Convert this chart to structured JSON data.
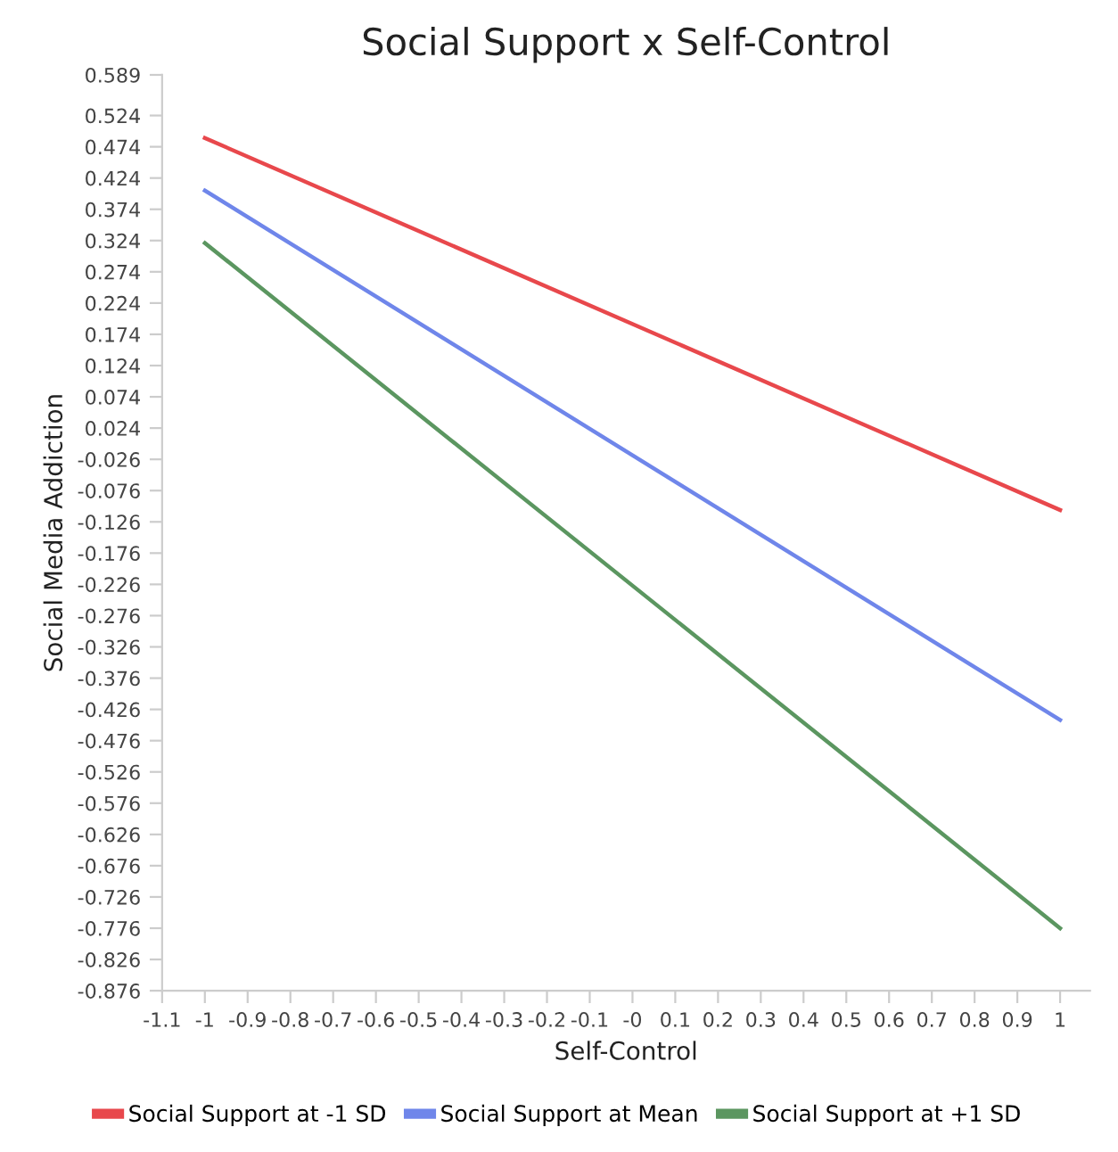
{
  "chart_data": {
    "type": "line",
    "title": "Social Support x Self-Control",
    "xlabel": "Self-Control",
    "ylabel": "Social Media Addiction",
    "x": [
      -1,
      1
    ],
    "series": [
      {
        "name": "Social Support at -1 SD",
        "color": "#e8484c",
        "values": [
          0.488,
          -0.107
        ]
      },
      {
        "name": "Social Support at Mean",
        "color": "#6f86ea",
        "values": [
          0.404,
          -0.443
        ]
      },
      {
        "name": "Social Support at +1 SD",
        "color": "#5b9660",
        "values": [
          0.32,
          -0.776
        ]
      }
    ],
    "xlim": [
      -1.1,
      1.07
    ],
    "ylim": [
      -0.876,
      0.589
    ],
    "xticks": [
      -1.1,
      -1,
      -0.9,
      -0.8,
      -0.7,
      -0.6,
      -0.5,
      -0.4,
      -0.3,
      -0.2,
      -0.1,
      {
        "value": 0,
        "label": "-0"
      },
      0.1,
      0.2,
      0.3,
      0.4,
      0.5,
      0.6,
      0.7,
      0.8,
      0.9,
      1
    ],
    "yticks": [
      0.589,
      0.524,
      0.474,
      0.424,
      0.374,
      0.324,
      0.274,
      0.224,
      0.174,
      0.124,
      0.074,
      0.024,
      -0.026,
      -0.076,
      -0.126,
      -0.176,
      -0.226,
      -0.276,
      -0.326,
      -0.376,
      -0.426,
      -0.476,
      -0.526,
      -0.576,
      -0.626,
      -0.676,
      -0.726,
      -0.776,
      -0.826,
      -0.876
    ],
    "grid": false,
    "legend": "bottom",
    "marker": "none",
    "line_style": "solid"
  }
}
